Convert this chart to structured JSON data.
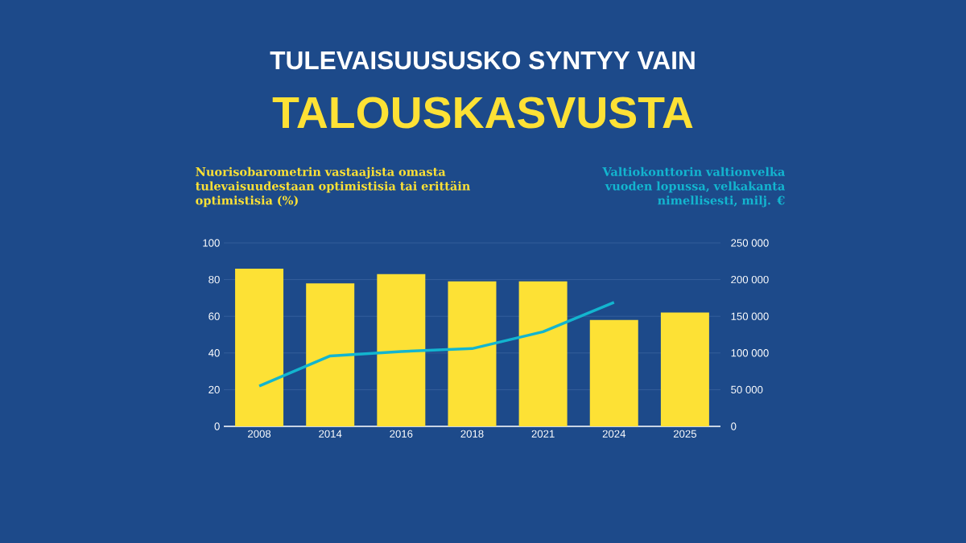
{
  "chart_data": {
    "type": "bar",
    "title": "TULEVAISUUSUSKO SYNTYY VAIN",
    "subtitle": "TALOUSKASVUSTA",
    "ylabel": "Nuorisobarometrin vastaajista omasta tulevaisuudestaan optimistisia tai erittäin optimistisia (%)",
    "y2label": "Valtiokonttorin valtionvelka vuoden lopussa, velkakanta nimellisesti,  milj. €",
    "categories": [
      "2008",
      "2014",
      "2016",
      "2018",
      "2021",
      "2024",
      "2025"
    ],
    "series": [
      {
        "color": "#fde135",
        "values": [
          86,
          78,
          83,
          79,
          79,
          58,
          62
        ]
      },
      {
        "type": "line",
        "axis": "y2",
        "color": "#13b5cf",
        "values": [
          55000,
          96000,
          102000,
          106000,
          129000,
          169000,
          null
        ]
      }
    ],
    "ylim": [
      0,
      100
    ],
    "yticks": [
      0,
      20,
      40,
      60,
      80,
      100
    ],
    "y2lim": [
      0,
      250000
    ],
    "y2ticks": [
      0,
      {
        "value": 50000,
        "label": "50 000"
      },
      {
        "value": 100000,
        "label": "100 000"
      },
      {
        "value": 150000,
        "label": "150 000"
      },
      {
        "value": 200000,
        "label": "200 000"
      },
      {
        "value": 250000,
        "label": "250 000"
      }
    ],
    "grid": "y"
  }
}
